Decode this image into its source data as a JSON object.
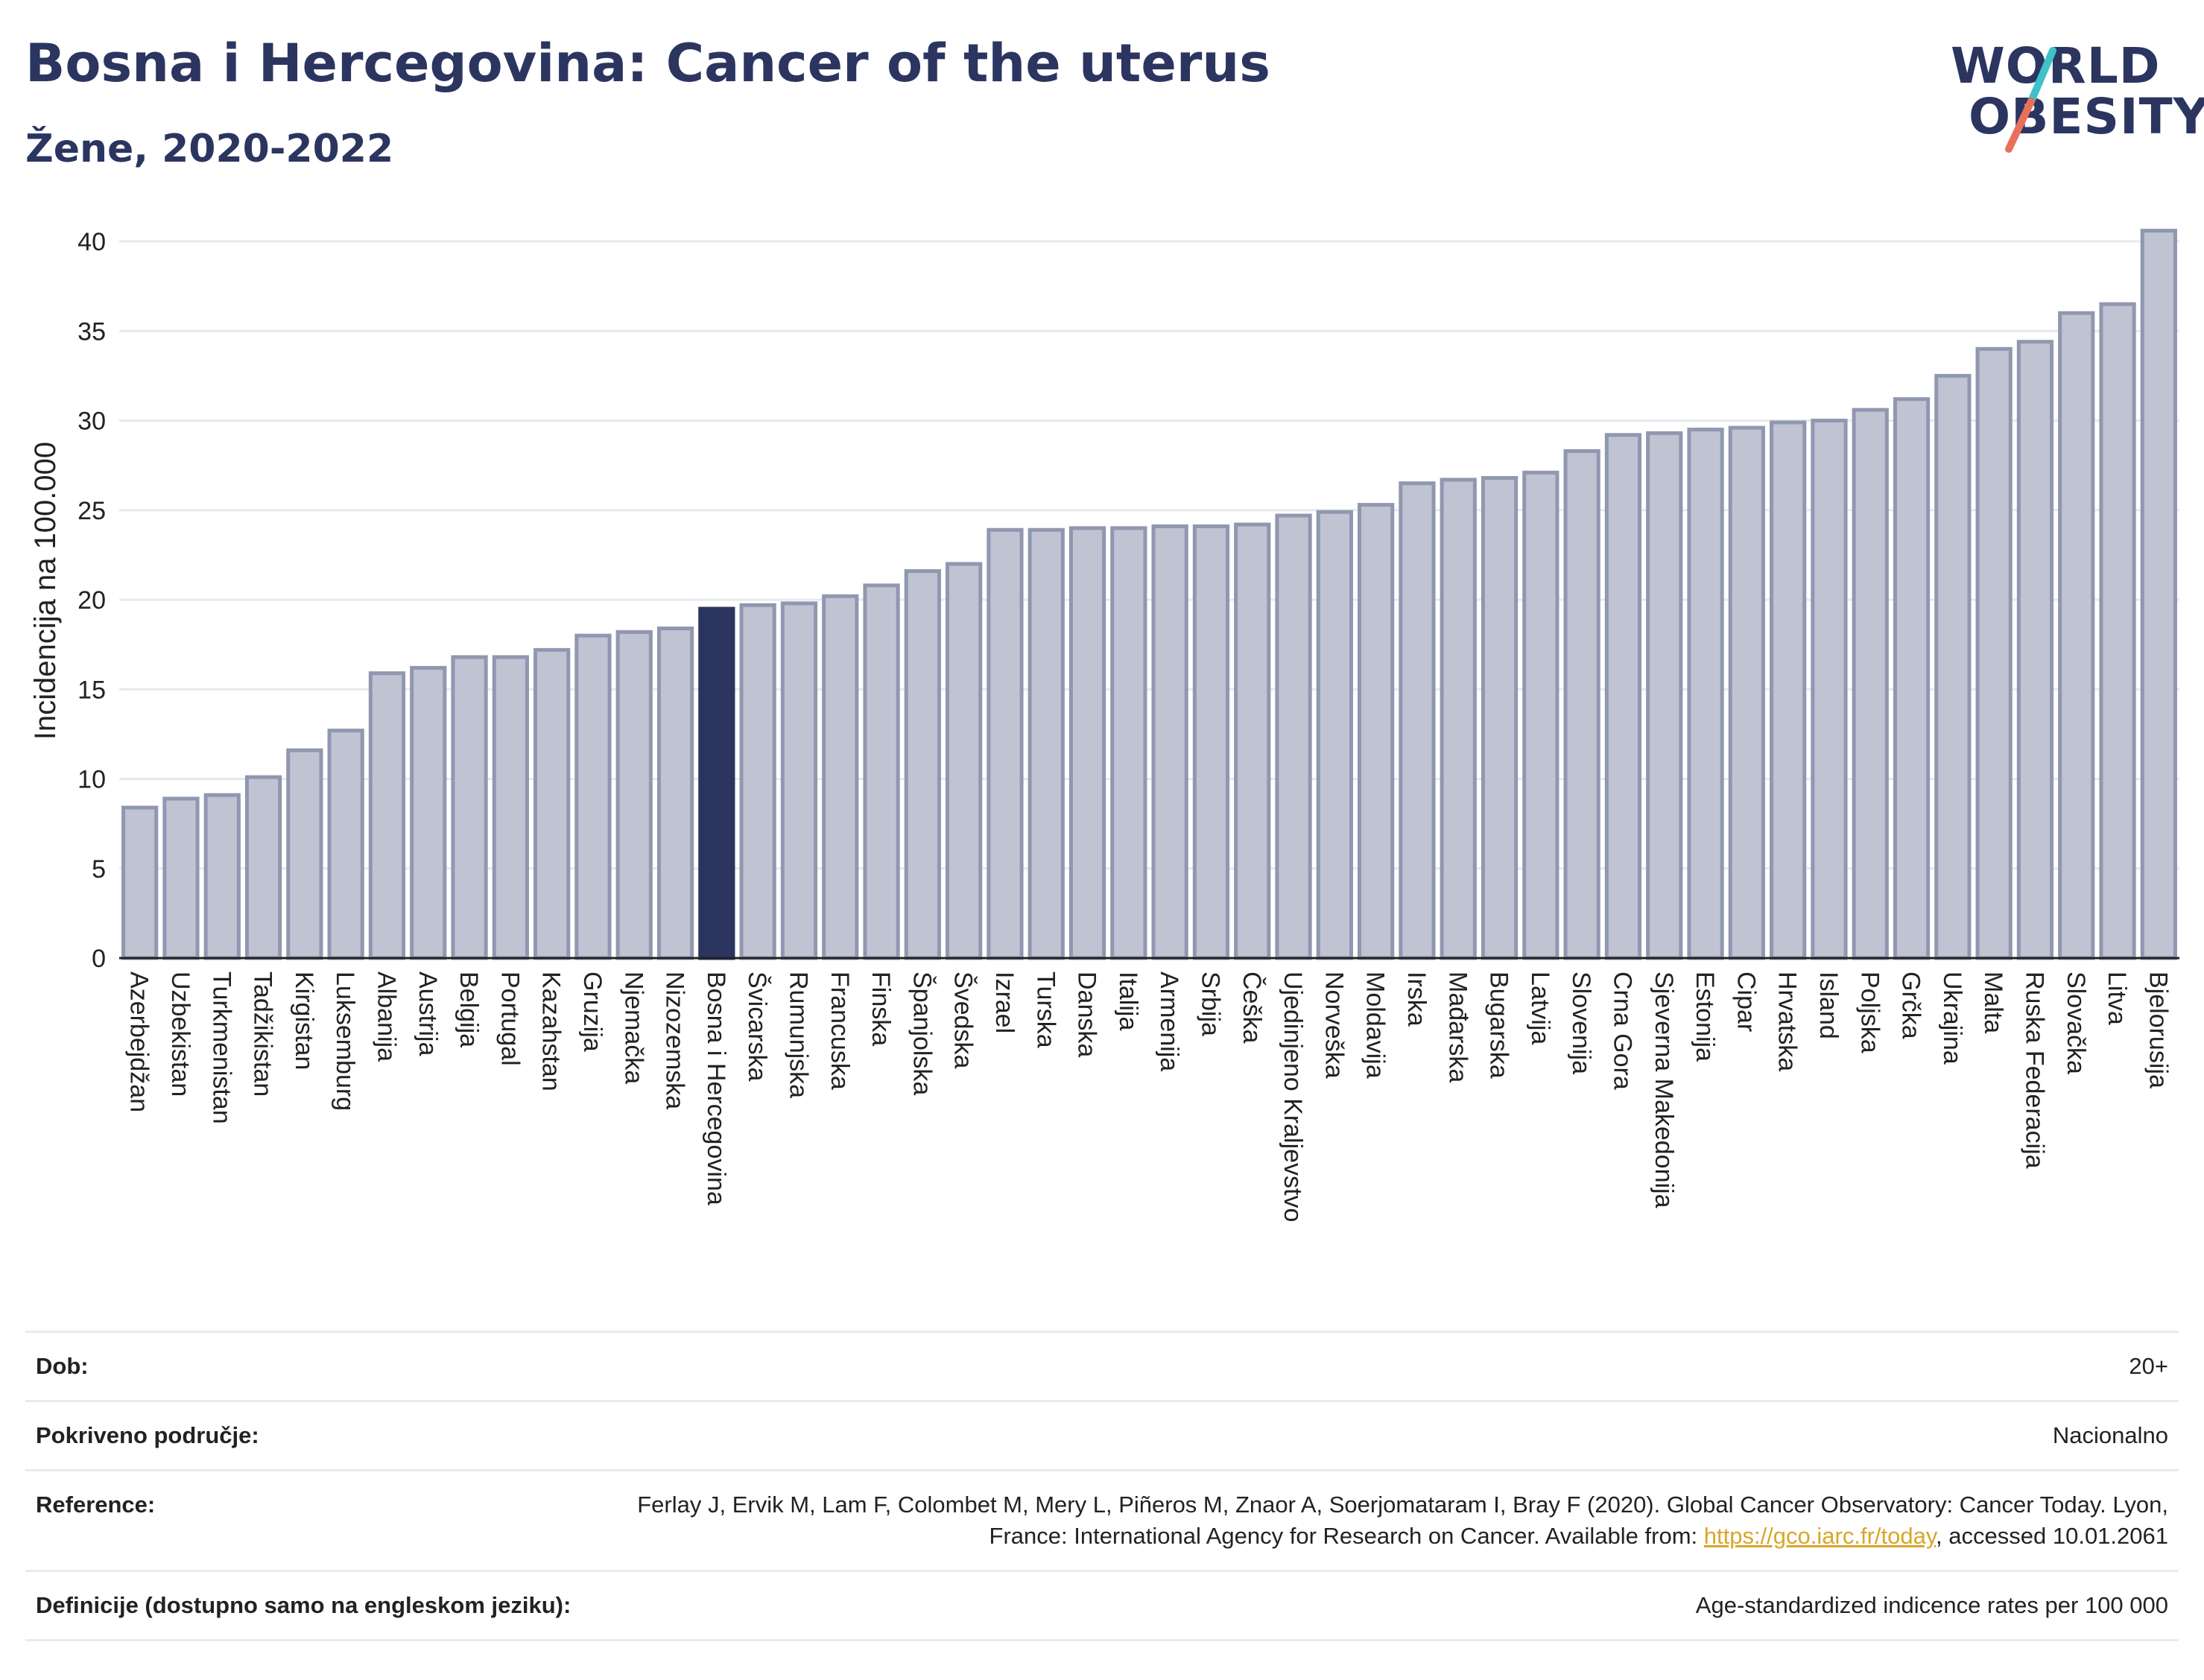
{
  "header": {
    "title": "Bosna i Hercegovina: Cancer of the uterus",
    "subtitle": "Žene, 2020-2022"
  },
  "logo": {
    "line1": "WORLD",
    "line2": "OBESITY",
    "color_text": "#2b3560",
    "color_slash_top": "#3fc1c9",
    "color_slash_bottom": "#e8705a"
  },
  "chart_data": {
    "type": "bar",
    "ylabel": "Incidencija na 100.000",
    "ylim": [
      0,
      41
    ],
    "yticks": [
      0,
      5,
      10,
      15,
      20,
      25,
      30,
      35,
      40
    ],
    "grid": true,
    "highlight": "Bosna i Hercegovina",
    "colors": {
      "bar": "#bfc3d2",
      "bar_border": "#9097b0",
      "highlight": "#2b3560",
      "grid": "#e6e9ef"
    },
    "categories": [
      "Azerbejdžan",
      "Uzbekistan",
      "Turkmenistan",
      "Tadžikistan",
      "Kirgistan",
      "Luksemburg",
      "Albanija",
      "Austrija",
      "Belgija",
      "Portugal",
      "Kazahstan",
      "Gruzija",
      "Njemačka",
      "Nizozemska",
      "Bosna i Hercegovina",
      "Švicarska",
      "Rumunjska",
      "Francuska",
      "Finska",
      "Španjolska",
      "Švedska",
      "Izrael",
      "Turska",
      "Danska",
      "Italija",
      "Armenija",
      "Srbija",
      "Češka",
      "Ujedinjeno Kraljevstvo",
      "Norveška",
      "Moldavija",
      "Irska",
      "Mađarska",
      "Bugarska",
      "Latvija",
      "Slovenija",
      "Crna Gora",
      "Sjeverna Makedonija",
      "Estonija",
      "Cipar",
      "Hrvatska",
      "Island",
      "Poljska",
      "Grčka",
      "Ukrajina",
      "Malta",
      "Ruska Federacija",
      "Slovačka",
      "Litva",
      "Bjelorusija"
    ],
    "values": [
      8.4,
      8.9,
      9.1,
      10.1,
      11.6,
      12.7,
      15.9,
      16.2,
      16.8,
      16.8,
      17.2,
      18.0,
      18.2,
      18.4,
      19.5,
      19.7,
      19.8,
      20.2,
      20.8,
      21.6,
      22.0,
      23.9,
      23.9,
      24.0,
      24.0,
      24.1,
      24.1,
      24.2,
      24.7,
      24.9,
      25.3,
      26.5,
      26.7,
      26.8,
      27.1,
      28.3,
      29.2,
      29.3,
      29.5,
      29.6,
      29.9,
      30.0,
      30.6,
      31.2,
      32.5,
      34.0,
      34.4,
      36.0,
      36.5,
      40.6
    ]
  },
  "meta": {
    "age_label": "Dob:",
    "age_value": "20+",
    "coverage_label": "Pokriveno područje:",
    "coverage_value": "Nacionalno",
    "reference_label": "Reference:",
    "reference_text_1": "Ferlay J, Ervik M, Lam F, Colombet M, Mery L, Piñeros M, Znaor A, Soerjomataram I, Bray F (2020). Global Cancer Observatory: Cancer Today. Lyon, France: International Agency for Research on Cancer. Available from: ",
    "reference_link": "https://gco.iarc.fr/today",
    "reference_text_2": ", accessed 10.01.2061",
    "definition_label": "Definicije (dostupno samo na engleskom jeziku):",
    "definition_value": "Age-standardized indicence rates per 100 000"
  }
}
